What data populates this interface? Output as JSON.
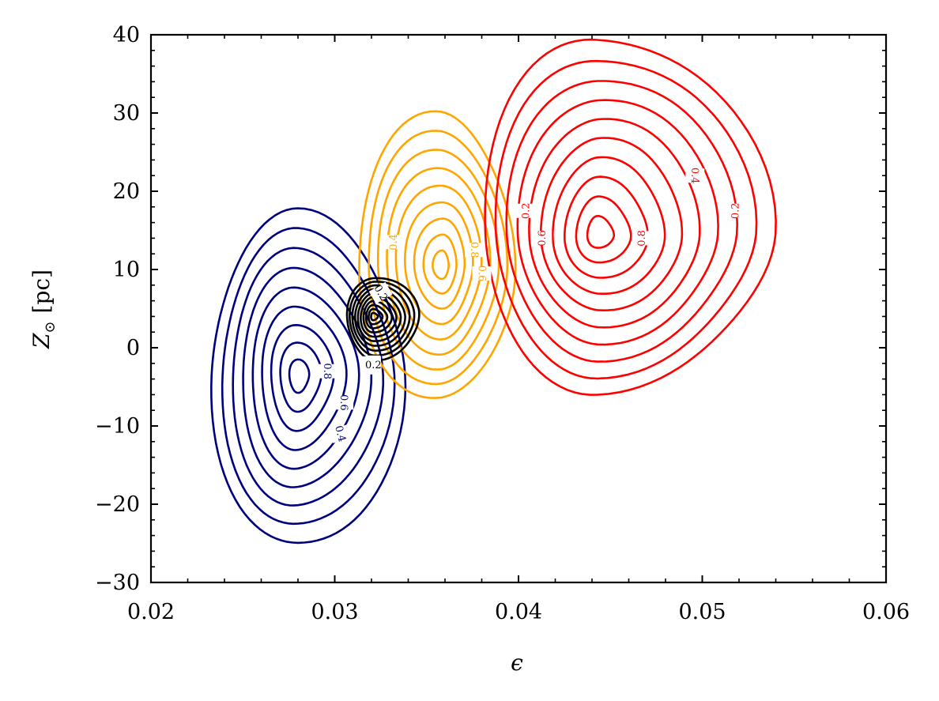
{
  "chart_data": {
    "type": "contour",
    "title": "",
    "xlabel": "ϵ",
    "ylabel": "Z",
    "ylabel_subscript": "⊙",
    "ylabel_unit": "[pc]",
    "xlim": [
      0.02,
      0.06
    ],
    "ylim": [
      -30,
      40
    ],
    "x_ticks": [
      0.02,
      0.03,
      0.04,
      0.05,
      0.06
    ],
    "x_tick_labels": [
      "0.02",
      "0.03",
      "0.04",
      "0.05",
      "0.06"
    ],
    "y_ticks": [
      -30,
      -20,
      -10,
      0,
      10,
      20,
      30,
      40
    ],
    "y_tick_labels": [
      "−30",
      "−20",
      "−10",
      "0",
      "10",
      "20",
      "30",
      "40"
    ],
    "x_minor_step": 0.002,
    "y_minor_step": 2,
    "grid": false,
    "legend": "none",
    "series": [
      {
        "color": "#00007f",
        "center": [
          0.028,
          -3.5
        ],
        "outer": {
          "x0": 0.0233,
          "x1": 0.0335,
          "y0": -25.6,
          "y1": 17.2
        },
        "levels": 9,
        "labels": [
          {
            "text": "0.8",
            "x": 0.0296,
            "y": -3.0,
            "rot": 90
          },
          {
            "text": "0.6",
            "x": 0.0305,
            "y": -7.0,
            "rot": 90
          },
          {
            "text": "0.4",
            "x": 0.0303,
            "y": -11.0,
            "rot": 75
          },
          {
            "text": "0.2",
            "x": 0.032,
            "y": -2.0,
            "rot": 90
          }
        ]
      },
      {
        "color": "#ffa500",
        "center": [
          0.0358,
          10.5
        ],
        "outer": {
          "x0": 0.0312,
          "x1": 0.0395,
          "y0": -6.5,
          "y1": 30.0
        },
        "levels": 9,
        "labels": [
          {
            "text": "0.8",
            "x": 0.0376,
            "y": 12.5,
            "rot": 90
          },
          {
            "text": "0.6",
            "x": 0.038,
            "y": 9.5,
            "rot": 90
          },
          {
            "text": "0.4",
            "x": 0.0332,
            "y": 13.5,
            "rot": -90
          }
        ]
      },
      {
        "color": "#ff0000",
        "center": [
          0.0443,
          14.5
        ],
        "outer": {
          "x0": 0.0381,
          "x1": 0.0533,
          "y0": -5.5,
          "y1": 40.0
        },
        "levels": 10,
        "labels": [
          {
            "text": "0.8",
            "x": 0.0467,
            "y": 14.0,
            "rot": -90
          },
          {
            "text": "0.6",
            "x": 0.0413,
            "y": 14.0,
            "rot": -90
          },
          {
            "text": "0.4",
            "x": 0.0496,
            "y": 22.0,
            "rot": 90
          },
          {
            "text": "0.2",
            "x": 0.0518,
            "y": 17.5,
            "rot": -90
          },
          {
            "text": "0.2",
            "x": 0.0404,
            "y": 17.5,
            "rot": -90
          }
        ]
      },
      {
        "color": "#000000",
        "center": [
          0.0321,
          4.0
        ],
        "outer": {
          "x0": 0.0307,
          "x1": 0.0345,
          "y0": -1.5,
          "y1": 9.0
        },
        "levels": 10,
        "labels": [
          {
            "text": "0.2",
            "x": 0.0325,
            "y": 7.0,
            "rot": 60
          },
          {
            "text": "0.2",
            "x": 0.0321,
            "y": -2.2,
            "rot": 0
          }
        ]
      }
    ]
  }
}
